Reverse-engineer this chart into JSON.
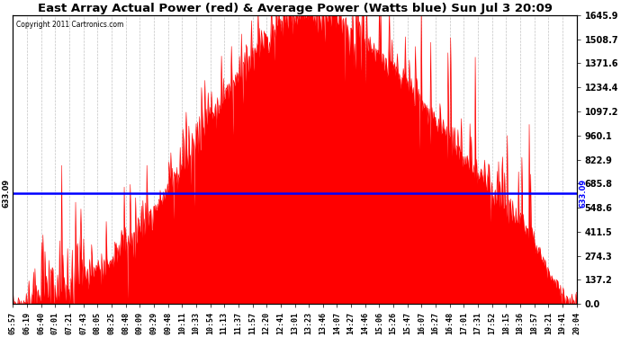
{
  "title": "East Array Actual Power (red) & Average Power (Watts blue) Sun Jul 3 20:09",
  "copyright_text": "Copyright 2011 Cartronics.com",
  "average_power": 633.09,
  "yticks": [
    0.0,
    137.2,
    274.3,
    411.5,
    548.6,
    685.8,
    822.9,
    960.1,
    1097.2,
    1234.4,
    1371.6,
    1508.7,
    1645.9
  ],
  "ymax": 1645.9,
  "fill_color": "#FF0000",
  "avg_line_color": "#0000FF",
  "background_color": "#FFFFFF",
  "title_fontsize": 9.5,
  "xtick_labels": [
    "05:57",
    "06:19",
    "06:40",
    "07:01",
    "07:21",
    "07:43",
    "08:05",
    "08:25",
    "08:48",
    "09:09",
    "09:29",
    "09:48",
    "10:11",
    "10:33",
    "10:54",
    "11:13",
    "11:37",
    "11:57",
    "12:20",
    "12:41",
    "13:01",
    "13:23",
    "13:46",
    "14:07",
    "14:27",
    "14:46",
    "15:06",
    "15:26",
    "15:47",
    "16:07",
    "16:27",
    "16:48",
    "17:01",
    "17:31",
    "17:52",
    "18:15",
    "18:36",
    "18:57",
    "19:21",
    "19:41",
    "20:04"
  ]
}
